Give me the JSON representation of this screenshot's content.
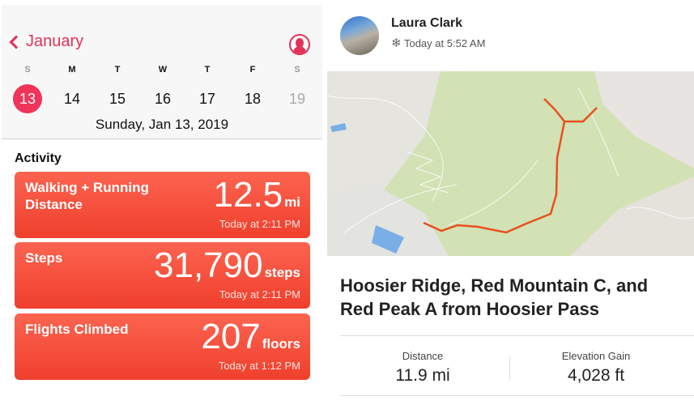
{
  "calendar": {
    "month": "January",
    "weekdays": [
      "S",
      "M",
      "T",
      "W",
      "T",
      "F",
      "S"
    ],
    "days": [
      "13",
      "14",
      "15",
      "16",
      "17",
      "18",
      "19"
    ],
    "selected_date": "Sunday, Jan 13, 2019"
  },
  "activity": {
    "heading": "Activity",
    "cards": [
      {
        "label": "Walking + Running Distance",
        "value": "12.5",
        "unit": "mi",
        "time": "Today at 2:11 PM"
      },
      {
        "label": "Steps",
        "value": "31,790",
        "unit": "steps",
        "time": "Today at 2:11 PM"
      },
      {
        "label": "Flights Climbed",
        "value": "207",
        "unit": "floors",
        "time": "Today at 1:12 PM"
      }
    ]
  },
  "post": {
    "user": "Laura Clark",
    "time": "Today at 5:52 AM",
    "activity_icon": "snowflake-icon",
    "title": "Hoosier Ridge, Red Mountain C, and Red Peak A from Hoosier Pass",
    "stats": [
      {
        "label": "Distance",
        "value": "11.9 mi"
      },
      {
        "label": "Elevation Gain",
        "value": "4,028 ft"
      }
    ]
  },
  "colors": {
    "accent": "#e0325a",
    "card": "#f5503c",
    "route": "#e8501e"
  }
}
